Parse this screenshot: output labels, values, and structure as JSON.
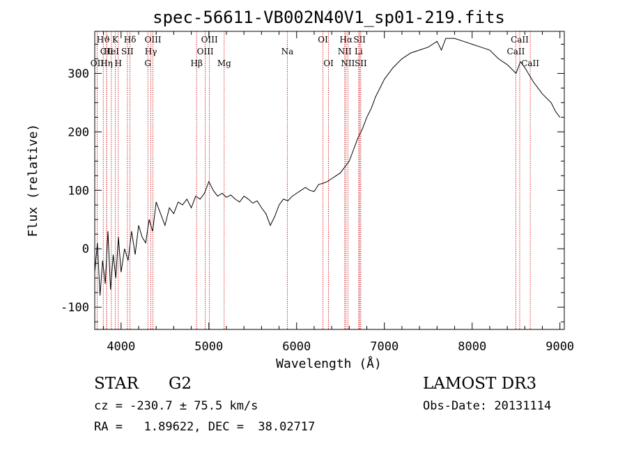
{
  "chart_data": {
    "type": "line",
    "title": "spec-56611-VB002N40V1_sp01-219.fits",
    "xlabel": "Wavelength (Å)",
    "ylabel": "Flux (relative)",
    "xlim": [
      3700,
      9050
    ],
    "ylim": [
      -138,
      372
    ],
    "xticks": [
      4000,
      5000,
      6000,
      7000,
      8000,
      9000
    ],
    "yticks": [
      -100,
      0,
      100,
      200,
      300
    ],
    "grid": false,
    "series": [
      {
        "name": "spectrum",
        "x": [
          3700,
          3730,
          3760,
          3790,
          3820,
          3850,
          3880,
          3910,
          3940,
          3970,
          4000,
          4040,
          4080,
          4120,
          4160,
          4200,
          4240,
          4280,
          4320,
          4360,
          4400,
          4450,
          4500,
          4550,
          4600,
          4650,
          4700,
          4750,
          4800,
          4850,
          4900,
          4950,
          5000,
          5050,
          5100,
          5150,
          5200,
          5250,
          5300,
          5350,
          5400,
          5450,
          5500,
          5550,
          5600,
          5650,
          5700,
          5750,
          5800,
          5850,
          5900,
          5950,
          6000,
          6050,
          6100,
          6150,
          6200,
          6250,
          6300,
          6350,
          6400,
          6450,
          6500,
          6550,
          6600,
          6650,
          6700,
          6750,
          6800,
          6850,
          6900,
          6950,
          7000,
          7100,
          7200,
          7300,
          7400,
          7500,
          7600,
          7650,
          7700,
          7800,
          7900,
          8000,
          8100,
          8200,
          8300,
          8400,
          8500,
          8550,
          8600,
          8700,
          8800,
          8900,
          8950,
          9000
        ],
        "y": [
          -40,
          10,
          -80,
          -20,
          -60,
          30,
          -70,
          -10,
          -50,
          20,
          -40,
          0,
          -20,
          30,
          -10,
          40,
          20,
          10,
          50,
          30,
          80,
          60,
          40,
          70,
          60,
          80,
          75,
          85,
          70,
          90,
          85,
          95,
          115,
          100,
          90,
          95,
          88,
          92,
          85,
          80,
          90,
          85,
          78,
          82,
          70,
          60,
          40,
          55,
          75,
          85,
          82,
          90,
          95,
          100,
          105,
          100,
          98,
          110,
          112,
          115,
          120,
          125,
          130,
          140,
          150,
          170,
          190,
          205,
          225,
          240,
          260,
          275,
          290,
          310,
          325,
          335,
          340,
          345,
          355,
          340,
          360,
          360,
          355,
          350,
          345,
          340,
          325,
          315,
          300,
          320,
          310,
          285,
          265,
          250,
          235,
          225
        ]
      }
    ],
    "line_markers": [
      {
        "label": "Hϑ",
        "wavelength": 3797,
        "row": 1
      },
      {
        "label": "CII",
        "wavelength": 3836,
        "row": 2
      },
      {
        "label": "OII",
        "wavelength": 3727,
        "row": 3
      },
      {
        "label": "K",
        "wavelength": 3934,
        "row": 1
      },
      {
        "label": "HeI",
        "wavelength": 3889,
        "row": 2
      },
      {
        "label": "Hη",
        "wavelength": 3835,
        "row": 3
      },
      {
        "label": "Hδ",
        "wavelength": 4102,
        "row": 1
      },
      {
        "label": "SII",
        "wavelength": 4072,
        "row": 2
      },
      {
        "label": "H",
        "wavelength": 3968,
        "row": 3
      },
      {
        "label": "OIII",
        "wavelength": 4363,
        "row": 1
      },
      {
        "label": "Hγ",
        "wavelength": 4340,
        "row": 2
      },
      {
        "label": "G",
        "wavelength": 4305,
        "row": 3
      },
      {
        "label": "OIII",
        "wavelength": 5007,
        "row": 1
      },
      {
        "label": "OIII",
        "wavelength": 4959,
        "row": 2
      },
      {
        "label": "Hβ",
        "wavelength": 4861,
        "row": 3
      },
      {
        "label": "Mg",
        "wavelength": 5175,
        "row": 3
      },
      {
        "label": "Na",
        "wavelength": 5894,
        "row": 2
      },
      {
        "label": "OI",
        "wavelength": 6300,
        "row": 1
      },
      {
        "label": "OI",
        "wavelength": 6364,
        "row": 3
      },
      {
        "label": "Hα",
        "wavelength": 6563,
        "row": 1
      },
      {
        "label": "NII",
        "wavelength": 6548,
        "row": 2
      },
      {
        "label": "NII",
        "wavelength": 6584,
        "row": 3
      },
      {
        "label": "SII",
        "wavelength": 6717,
        "row": 1
      },
      {
        "label": "Li",
        "wavelength": 6708,
        "row": 2
      },
      {
        "label": "SII",
        "wavelength": 6731,
        "row": 3
      },
      {
        "label": "CaII",
        "wavelength": 8542,
        "row": 1
      },
      {
        "label": "CaII",
        "wavelength": 8498,
        "row": 2
      },
      {
        "label": "CaII",
        "wavelength": 8662,
        "row": 3
      }
    ]
  },
  "footer": {
    "class_label": "STAR",
    "subclass": "G2",
    "survey": "LAMOST DR3",
    "cz_line": "cz = -230.7 ± 75.5 km/s",
    "obs_date": "Obs-Date: 20131114",
    "radec_line": "RA =   1.89622, DEC =  38.02717"
  },
  "colors": {
    "line_marker": "#cc0000",
    "spectrum": "#000000"
  }
}
